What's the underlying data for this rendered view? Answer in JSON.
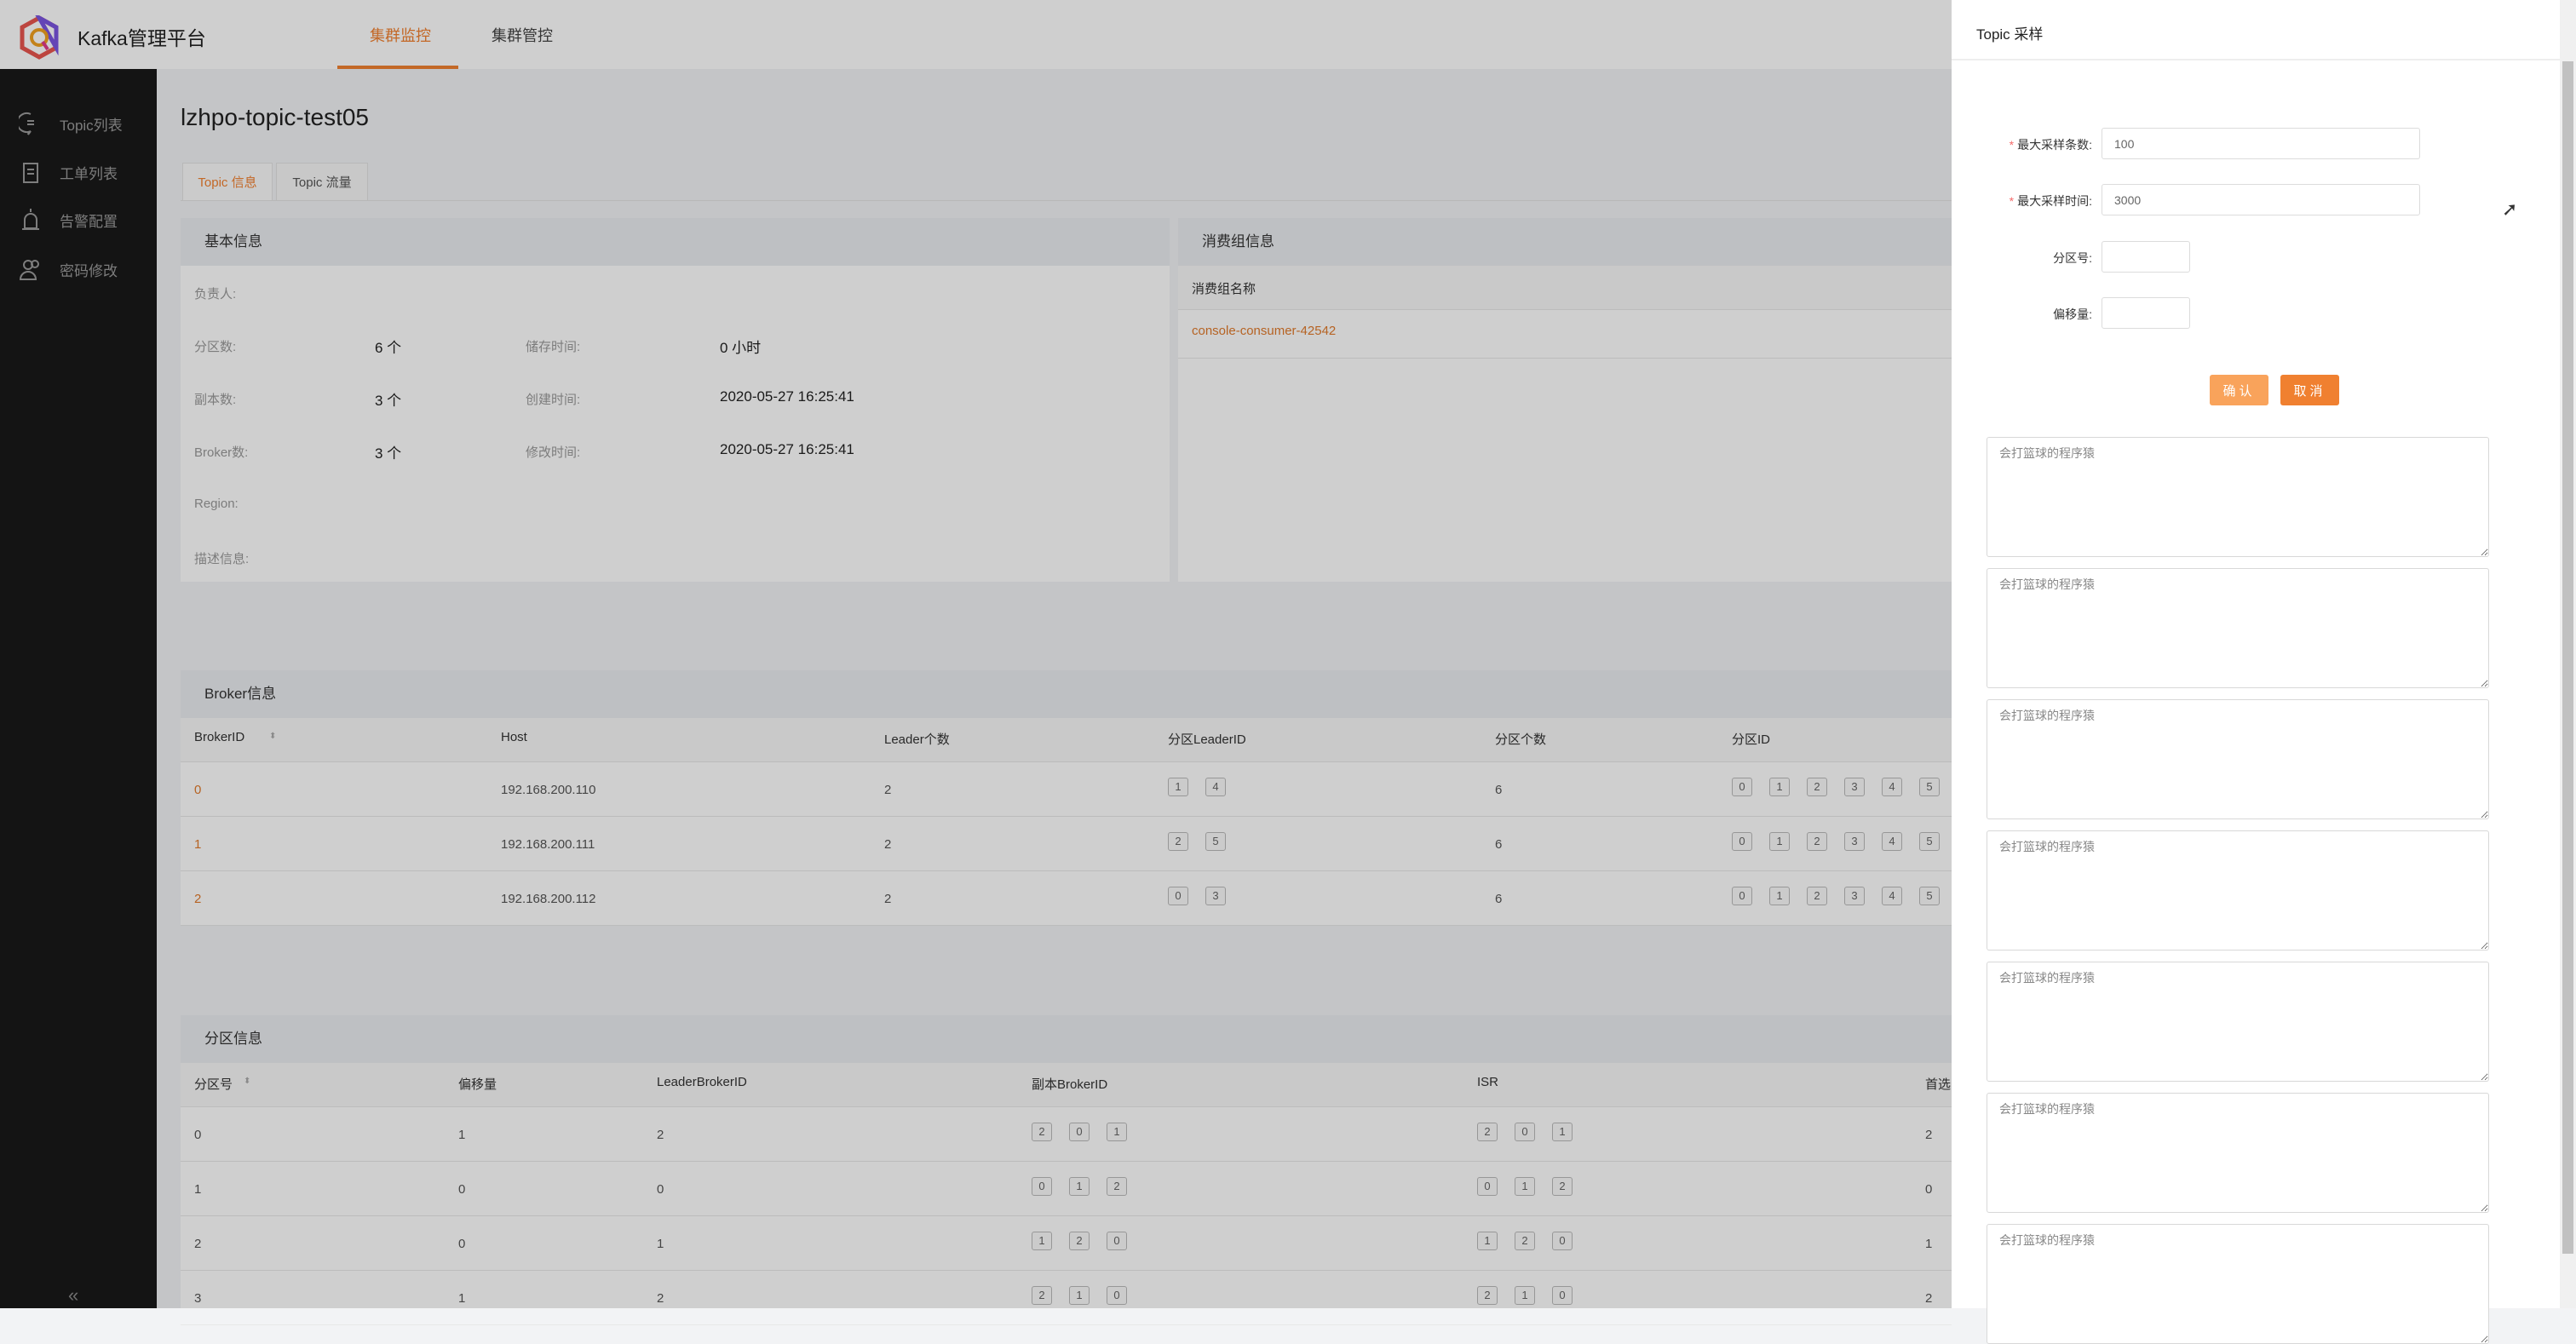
{
  "header": {
    "app_title": "Kafka管理平台",
    "nav": [
      {
        "label": "集群监控",
        "active": true
      },
      {
        "label": "集群管控",
        "active": false
      }
    ]
  },
  "sidebar": {
    "items": [
      {
        "label": "Topic列表",
        "icon": "chat-bubble-icon"
      },
      {
        "label": "工单列表",
        "icon": "clipboard-icon"
      },
      {
        "label": "告警配置",
        "icon": "alarm-icon"
      },
      {
        "label": "密码修改",
        "icon": "users-icon"
      }
    ],
    "collapse_icon": "«"
  },
  "page": {
    "title": "lzhpo-topic-test05",
    "tabs": [
      {
        "label": "Topic 信息",
        "active": true
      },
      {
        "label": "Topic 流量",
        "active": false
      }
    ]
  },
  "basic": {
    "title": "基本信息",
    "owner_label": "负责人:",
    "partitions_label": "分区数:",
    "partitions": "6 个",
    "retention_label": "储存时间:",
    "retention": "0 小时",
    "replicas_label": "副本数:",
    "replicas": "3 个",
    "created_label": "创建时间:",
    "created": "2020-05-27 16:25:41",
    "brokers_label": "Broker数:",
    "brokers": "3 个",
    "modified_label": "修改时间:",
    "modified": "2020-05-27 16:25:41",
    "region_label": "Region:",
    "desc_label": "描述信息:"
  },
  "consumer": {
    "title": "消费组信息",
    "column": "消费组名称",
    "rows": [
      "console-consumer-42542"
    ]
  },
  "broker": {
    "title": "Broker信息",
    "columns": [
      "BrokerID",
      "Host",
      "Leader个数",
      "分区LeaderID",
      "分区个数",
      "分区ID"
    ],
    "rows": [
      {
        "id": "0",
        "host": "192.168.200.110",
        "leaders": "2",
        "leader_ids": [
          "1",
          "4"
        ],
        "count": "6",
        "partition_ids": [
          "0",
          "1",
          "2",
          "3",
          "4",
          "5"
        ]
      },
      {
        "id": "1",
        "host": "192.168.200.111",
        "leaders": "2",
        "leader_ids": [
          "2",
          "5"
        ],
        "count": "6",
        "partition_ids": [
          "0",
          "1",
          "2",
          "3",
          "4",
          "5"
        ]
      },
      {
        "id": "2",
        "host": "192.168.200.112",
        "leaders": "2",
        "leader_ids": [
          "0",
          "3"
        ],
        "count": "6",
        "partition_ids": [
          "0",
          "1",
          "2",
          "3",
          "4",
          "5"
        ]
      }
    ]
  },
  "partition": {
    "title": "分区信息",
    "columns": [
      "分区号",
      "偏移量",
      "LeaderBrokerID",
      "副本BrokerID",
      "ISR",
      "首选"
    ],
    "rows": [
      {
        "id": "0",
        "offset": "1",
        "leader": "2",
        "replicas": [
          "2",
          "0",
          "1"
        ],
        "isr": [
          "2",
          "0",
          "1"
        ],
        "preferred": "2"
      },
      {
        "id": "1",
        "offset": "0",
        "leader": "0",
        "replicas": [
          "0",
          "1",
          "2"
        ],
        "isr": [
          "0",
          "1",
          "2"
        ],
        "preferred": "0"
      },
      {
        "id": "2",
        "offset": "0",
        "leader": "1",
        "replicas": [
          "1",
          "2",
          "0"
        ],
        "isr": [
          "1",
          "2",
          "0"
        ],
        "preferred": "1"
      },
      {
        "id": "3",
        "offset": "1",
        "leader": "2",
        "replicas": [
          "2",
          "1",
          "0"
        ],
        "isr": [
          "2",
          "1",
          "0"
        ],
        "preferred": "2"
      }
    ]
  },
  "drawer": {
    "title": "Topic 采样",
    "fields": [
      {
        "label": "最大采样条数:",
        "required": true,
        "value": "100"
      },
      {
        "label": "最大采样时间:",
        "required": true,
        "value": "3000"
      },
      {
        "label": "分区号:",
        "required": false,
        "value": ""
      },
      {
        "label": "偏移量:",
        "required": false,
        "value": ""
      }
    ],
    "confirm_label": "确认",
    "cancel_label": "取消",
    "textarea_placeholder": "会打篮球的程序猿"
  },
  "colors": {
    "accent": "#f08030",
    "confirm": "#f9a35b",
    "sidebar": "#191919"
  }
}
